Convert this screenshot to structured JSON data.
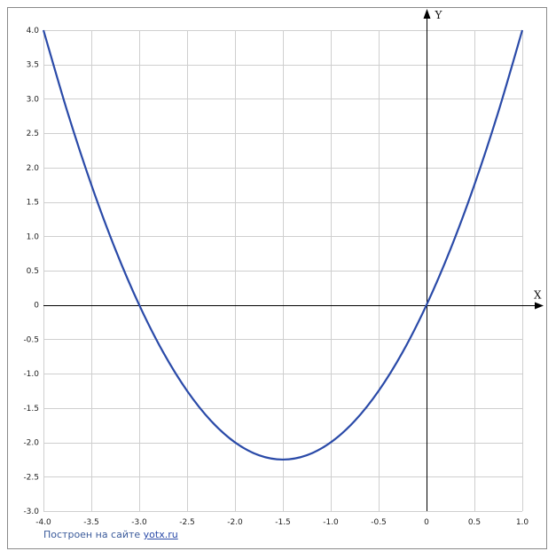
{
  "chart_data": {
    "type": "line",
    "x_axis_label": "X",
    "y_axis_label": "Y",
    "xlim": [
      -4.0,
      1.0
    ],
    "ylim": [
      -3.0,
      4.0
    ],
    "grid": true,
    "x_ticks": [
      -4.0,
      -3.5,
      -3.0,
      -2.5,
      -2.0,
      -1.5,
      -1.0,
      -0.5,
      0,
      0.5,
      1.0
    ],
    "x_tick_labels": [
      "-4.0",
      "-3.5",
      "-3.0",
      "-2.5",
      "-2.0",
      "-1.5",
      "-1.0",
      "-0.5",
      "0",
      "0.5",
      "1.0"
    ],
    "y_ticks": [
      4.0,
      3.5,
      3.0,
      2.5,
      2.0,
      1.5,
      1.0,
      0.5,
      0,
      -0.5,
      -1.0,
      -1.5,
      -2.0,
      -2.5,
      -3.0
    ],
    "y_tick_labels": [
      "4.0",
      "3.5",
      "3.0",
      "2.5",
      "2.0",
      "1.5",
      "1.0",
      "0.5",
      "0",
      "-0.5",
      "-1.0",
      "-1.5",
      "-2.0",
      "-2.5",
      "-3.0"
    ],
    "series": [
      {
        "x": [
          -4.0,
          -3.75,
          -3.5,
          -3.25,
          -3.0,
          -2.75,
          -2.5,
          -2.25,
          -2.0,
          -1.75,
          -1.5,
          -1.25,
          -1.0,
          -0.75,
          -0.5,
          -0.25,
          0,
          0.25,
          0.5,
          0.75,
          1.0
        ],
        "y": [
          4.0,
          2.8125,
          1.75,
          0.8125,
          0,
          -0.6875,
          -1.25,
          -1.6875,
          -2.0,
          -2.1875,
          -2.25,
          -2.1875,
          -2.0,
          -1.6875,
          -1.25,
          -0.6875,
          0,
          0.8125,
          1.75,
          2.8125,
          4.0
        ],
        "color": "#2a4aa8"
      }
    ],
    "colors": {
      "grid": "#cfcfcf",
      "axis": "#000000",
      "curve": "#2a4aa8"
    }
  },
  "credit": {
    "prefix": "Построен на сайте ",
    "link": "yotx.ru"
  }
}
